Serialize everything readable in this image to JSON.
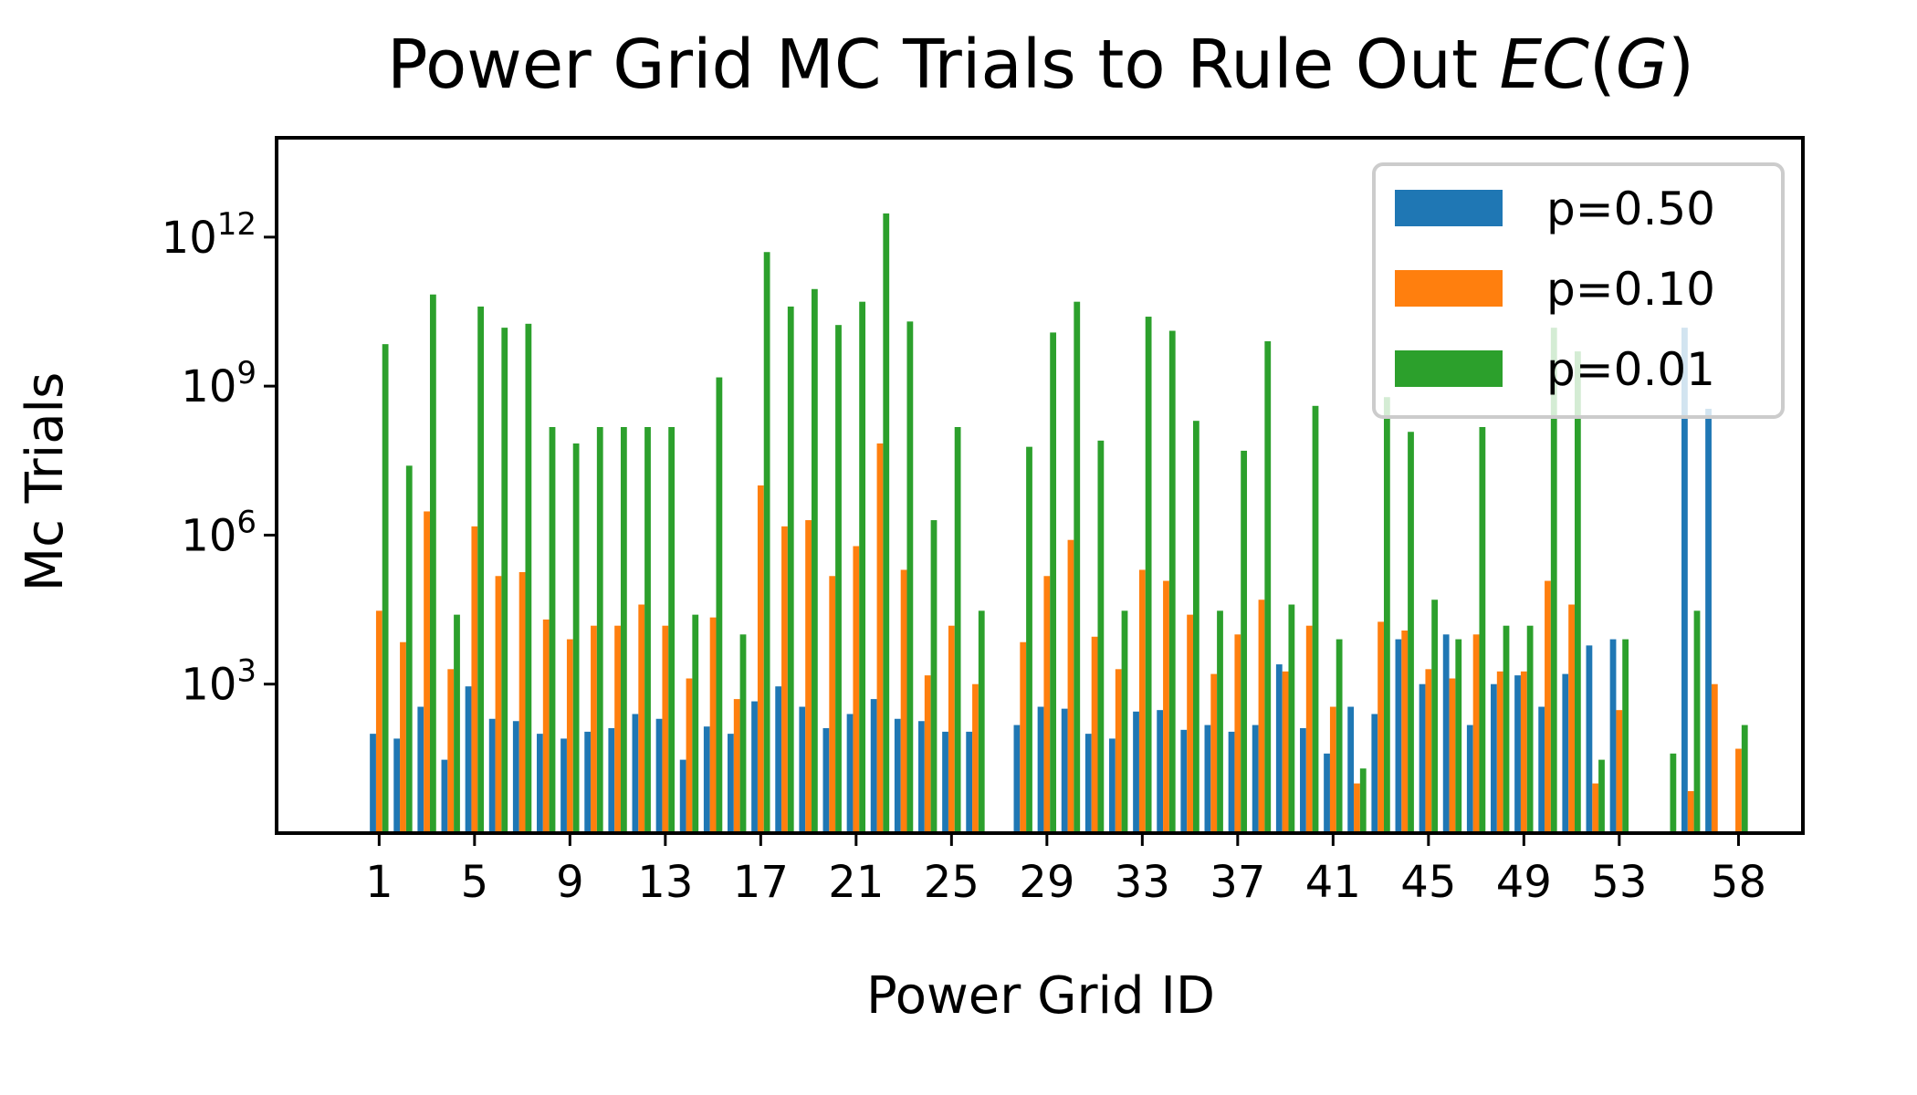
{
  "chart_data": {
    "type": "bar",
    "title": "Power Grid MC Trials to Rule Out ",
    "title_math": "EC(G)",
    "xlabel": "Power Grid ID",
    "ylabel": "Mc Trials",
    "y_scale": "log",
    "ylim": [
      1,
      100000000000000.0
    ],
    "yticks": [
      1000,
      1000000,
      1000000000,
      1000000000000
    ],
    "ytick_labels": [
      {
        "base": "10",
        "exp": "3"
      },
      {
        "base": "10",
        "exp": "6"
      },
      {
        "base": "10",
        "exp": "9"
      },
      {
        "base": "10",
        "exp": "12"
      }
    ],
    "xtick_labels": [
      "1",
      "5",
      "9",
      "13",
      "17",
      "21",
      "25",
      "29",
      "33",
      "37",
      "41",
      "45",
      "49",
      "53",
      "58"
    ],
    "legend_placement": "top-right",
    "grid": false,
    "x": [
      1,
      2,
      3,
      4,
      5,
      6,
      7,
      8,
      9,
      10,
      11,
      12,
      13,
      14,
      15,
      16,
      17,
      18,
      19,
      20,
      21,
      22,
      23,
      24,
      25,
      26,
      27,
      28,
      29,
      30,
      31,
      32,
      33,
      34,
      35,
      36,
      37,
      38,
      39,
      40,
      41,
      42,
      43,
      44,
      45,
      46,
      47,
      48,
      49,
      50,
      51,
      52,
      53,
      54,
      55,
      56,
      57,
      58
    ],
    "series": [
      {
        "name": "p=0.50",
        "color": "#1f77b4",
        "values": [
          100,
          80,
          350,
          30,
          900,
          200,
          180,
          100,
          80,
          110,
          130,
          250,
          200,
          30,
          140,
          100,
          450,
          900,
          350,
          130,
          250,
          500,
          200,
          180,
          110,
          110,
          null,
          150,
          350,
          320,
          100,
          80,
          280,
          300,
          120,
          150,
          110,
          150,
          2500,
          130,
          40,
          350,
          250,
          8000,
          1000,
          10000,
          150,
          1000,
          1500,
          350,
          1600,
          6000,
          8000,
          null,
          null,
          15000000000,
          350000000,
          null
        ]
      },
      {
        "name": "p=0.10",
        "color": "#ff7f0e",
        "values": [
          30000,
          7000,
          3000000,
          2000,
          1500000,
          150000,
          180000,
          20000,
          8000,
          15000,
          15000,
          40000,
          15000,
          1300,
          22000,
          500,
          10000000,
          1500000,
          2000000,
          150000,
          600000,
          70000000,
          200000,
          1500,
          15000,
          1000,
          null,
          7000,
          150000,
          800000,
          9000,
          2000,
          200000,
          120000,
          25000,
          1600,
          10000,
          50000,
          1800,
          15000,
          350,
          10,
          18000,
          12000,
          2000,
          1300,
          10000,
          1800,
          1800,
          120000,
          40000,
          10,
          300,
          null,
          null,
          7,
          1000,
          50
        ]
      },
      {
        "name": "p=0.01",
        "color": "#2ca02c",
        "values": [
          7000000000,
          25000000,
          70000000000,
          25000,
          40000000000,
          15000000000,
          18000000000,
          150000000,
          70000000,
          150000000,
          150000000,
          150000000,
          150000000,
          25000,
          1500000000,
          10000,
          500000000000,
          40000000000,
          90000000000,
          17000000000,
          50000000000,
          3000000000000,
          20000000000,
          2000000,
          150000000,
          30000,
          null,
          60000000,
          12000000000,
          50000000000,
          80000000,
          30000,
          25000000000,
          13000000000,
          200000000,
          30000,
          50000000,
          8000000000,
          40000,
          400000000,
          8000,
          20,
          600000000,
          120000000,
          50000,
          8000,
          150000000,
          15000,
          15000,
          15000000000,
          5000000000,
          30,
          8000,
          null,
          40,
          30000,
          null,
          150
        ]
      }
    ]
  }
}
